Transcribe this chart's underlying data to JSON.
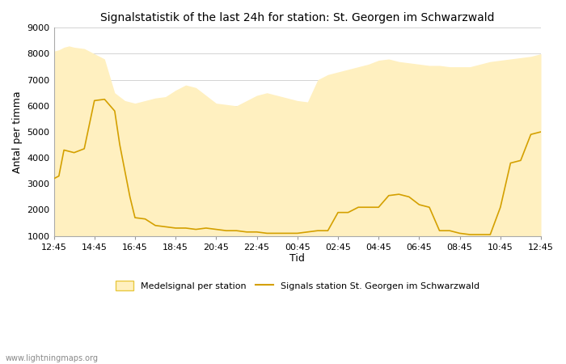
{
  "title": "Signalstatistik of the last 24h for station: St. Georgen im Schwarzwald",
  "ylabel": "Antal per timma",
  "xlabel": "Tid",
  "watermark": "www.lightningmaps.org",
  "ylim": [
    1000,
    9000
  ],
  "yticks": [
    1000,
    2000,
    3000,
    4000,
    5000,
    6000,
    7000,
    8000,
    9000
  ],
  "xtick_labels": [
    "12:45",
    "14:45",
    "16:45",
    "18:45",
    "20:45",
    "22:45",
    "00:45",
    "02:45",
    "04:45",
    "06:45",
    "08:45",
    "10:45",
    "12:45"
  ],
  "fill_color": "#FFF0C0",
  "fill_edge_color": "#E8C840",
  "line_color": "#D4A000",
  "bg_color": "#FFFFFF",
  "grid_color": "#CCCCCC",
  "legend_fill_label": "Medelsignal per station",
  "legend_line_label": "Signals station St. Georgen im Schwarzwald",
  "area_x": [
    0,
    0.5,
    1,
    1.5,
    2,
    3,
    4,
    5,
    6,
    7,
    8,
    9,
    10,
    11,
    12,
    13,
    14,
    15,
    16,
    17,
    18,
    19,
    20,
    21,
    22,
    23,
    24,
    25,
    26,
    27,
    28,
    29,
    30,
    31,
    32,
    33,
    34,
    35,
    36,
    37,
    38,
    39,
    40,
    41,
    42,
    43,
    44,
    45,
    46,
    47,
    48
  ],
  "area_y": [
    8100,
    8150,
    8250,
    8300,
    8250,
    8200,
    8000,
    7800,
    6500,
    6200,
    6100,
    6200,
    6300,
    6350,
    6600,
    6800,
    6700,
    6400,
    6100,
    6050,
    6000,
    6200,
    6400,
    6500,
    6400,
    6300,
    6200,
    6150,
    7000,
    7200,
    7300,
    7400,
    7500,
    7600,
    7750,
    7800,
    7700,
    7650,
    7600,
    7550,
    7550,
    7500,
    7500,
    7500,
    7600,
    7700,
    7750,
    7800,
    7850,
    7900,
    8000
  ],
  "line_x": [
    0,
    0.5,
    1,
    1.5,
    2,
    3,
    4,
    5,
    6,
    6.5,
    7,
    7.5,
    8,
    9,
    10,
    11,
    12,
    13,
    14,
    15,
    16,
    17,
    18,
    19,
    20,
    21,
    22,
    23,
    24,
    25,
    26,
    27,
    28,
    29,
    30,
    31,
    32,
    33,
    34,
    35,
    36,
    37,
    38,
    39,
    40,
    41,
    42,
    43,
    44,
    45,
    46,
    47,
    48
  ],
  "line_y": [
    3200,
    3300,
    4300,
    4250,
    4200,
    4350,
    6200,
    6250,
    5800,
    4500,
    3500,
    2500,
    1700,
    1650,
    1400,
    1350,
    1300,
    1300,
    1250,
    1300,
    1250,
    1200,
    1200,
    1150,
    1150,
    1100,
    1100,
    1100,
    1100,
    1150,
    1200,
    1200,
    1900,
    1900,
    2100,
    2100,
    2100,
    2550,
    2600,
    2500,
    2200,
    2100,
    1200,
    1200,
    1100,
    1050,
    1050,
    1050,
    2100,
    3800,
    3900,
    4900,
    5000
  ]
}
